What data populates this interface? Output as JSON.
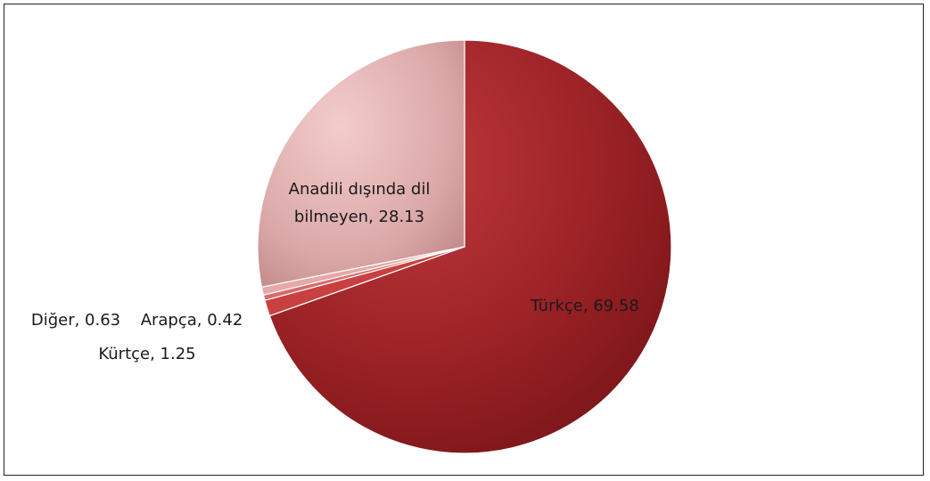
{
  "chart_data": {
    "type": "pie",
    "title": "",
    "slices": [
      {
        "label": "Türkçe",
        "value": 69.58,
        "display": "Türkçe, 69.58",
        "color": "#9b2226"
      },
      {
        "label": "Kürtçe",
        "value": 1.25,
        "display": "Kürtçe, 1.25",
        "color": "#c94040"
      },
      {
        "label": "Arapça",
        "value": 0.42,
        "display": "Arapça, 0.42",
        "color": "#d96a6a"
      },
      {
        "label": "Diğer",
        "value": 0.63,
        "display": "Diğer, 0.63",
        "color": "#e6a8a8"
      },
      {
        "label": "Anadili dışında dil bilmeyen",
        "value": 28.13,
        "display_lines": [
          "Anadili dışında dil",
          "bilmeyen, 28.13"
        ],
        "color": "#d9a3a3"
      }
    ],
    "legend": "none"
  }
}
